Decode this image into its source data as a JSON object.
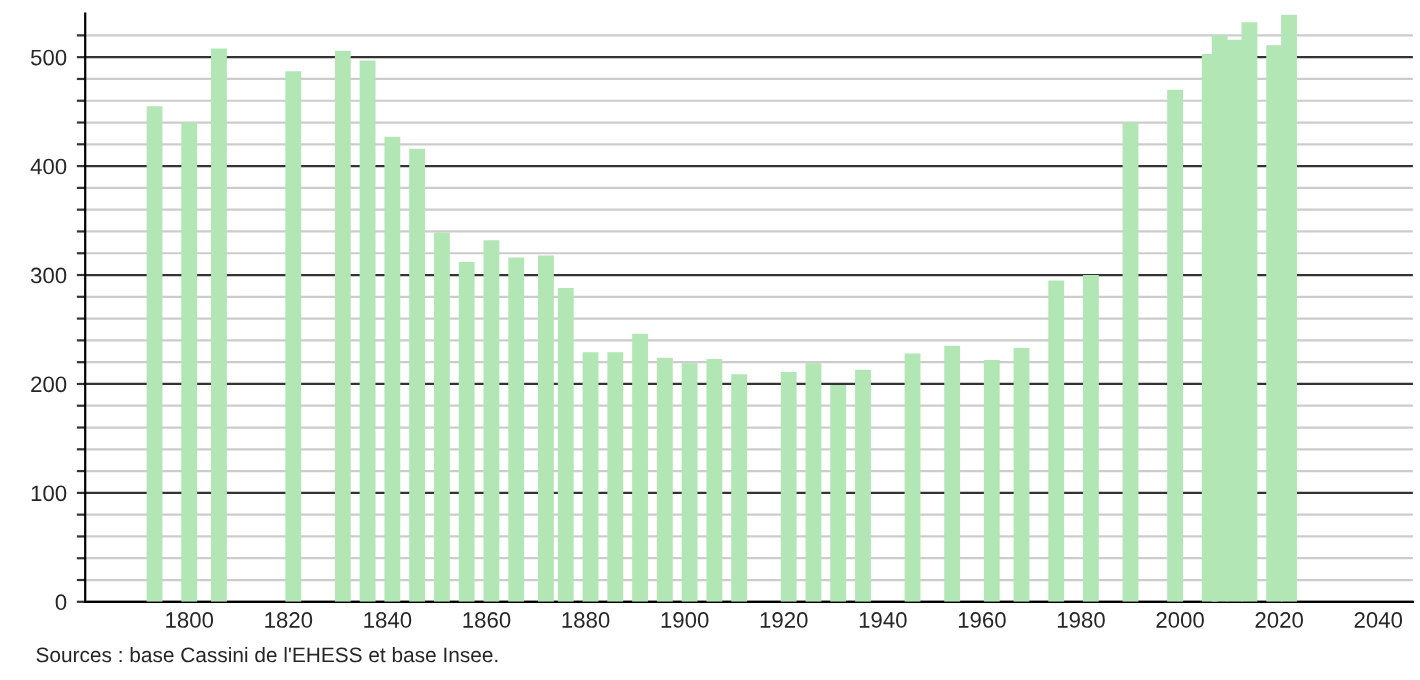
{
  "chart_data": {
    "type": "bar",
    "x": [
      1793,
      1800,
      1806,
      1821,
      1831,
      1836,
      1841,
      1846,
      1851,
      1856,
      1861,
      1866,
      1872,
      1876,
      1881,
      1886,
      1891,
      1896,
      1901,
      1906,
      1911,
      1921,
      1926,
      1931,
      1936,
      1946,
      1954,
      1962,
      1968,
      1975,
      1982,
      1990,
      1999,
      2006,
      2008,
      2011,
      2014,
      2019,
      2022
    ],
    "values": [
      455,
      440,
      508,
      487,
      506,
      497,
      427,
      416,
      339,
      312,
      332,
      316,
      318,
      288,
      229,
      229,
      246,
      224,
      219,
      223,
      209,
      211,
      219,
      199,
      213,
      228,
      235,
      222,
      233,
      295,
      300,
      440,
      470,
      503,
      520,
      516,
      532,
      511,
      539
    ],
    "color": "#b3e6b5",
    "xlim": [
      1779,
      2047
    ],
    "xticks": [
      1800,
      1820,
      1840,
      1860,
      1880,
      1900,
      1920,
      1940,
      1960,
      1980,
      2000,
      2020,
      2040
    ],
    "ylim": [
      0,
      540
    ],
    "yticks": [
      0,
      {
        "value": 20,
        "label": null
      },
      {
        "value": 40,
        "label": null
      },
      {
        "value": 60,
        "label": null
      },
      {
        "value": 80,
        "label": null
      },
      100,
      {
        "value": 120,
        "label": null
      },
      {
        "value": 140,
        "label": null
      },
      {
        "value": 160,
        "label": null
      },
      {
        "value": 180,
        "label": null
      },
      200,
      {
        "value": 220,
        "label": null
      },
      {
        "value": 240,
        "label": null
      },
      {
        "value": 260,
        "label": null
      },
      {
        "value": 280,
        "label": null
      },
      300,
      {
        "value": 320,
        "label": null
      },
      {
        "value": 340,
        "label": null
      },
      {
        "value": 360,
        "label": null
      },
      {
        "value": 380,
        "label": null
      },
      400,
      {
        "value": 420,
        "label": null
      },
      {
        "value": 440,
        "label": null
      },
      {
        "value": 460,
        "label": null
      },
      {
        "value": 480,
        "label": null
      },
      500,
      {
        "value": 520,
        "label": null
      }
    ],
    "grid": "y",
    "annotations": [
      "Sources : base Cassini de l'EHESS et base Insee."
    ]
  }
}
